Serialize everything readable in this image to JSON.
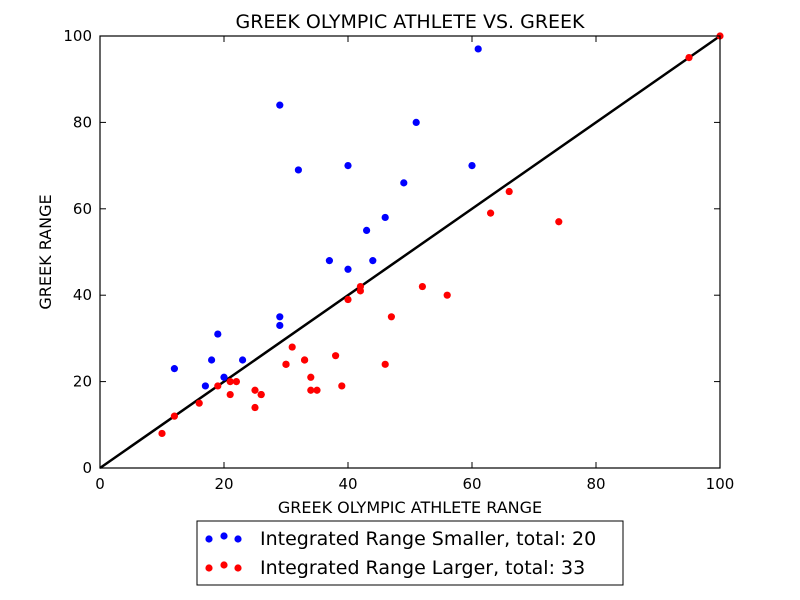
{
  "chart_data": {
    "type": "scatter",
    "title": "GREEK OLYMPIC ATHLETE VS. GREEK",
    "xlabel": "GREEK OLYMPIC ATHLETE RANGE",
    "ylabel": "GREEK RANGE",
    "xlim": [
      0,
      100
    ],
    "ylim": [
      0,
      100
    ],
    "x_ticks": [
      0,
      20,
      40,
      60,
      80,
      100
    ],
    "y_ticks": [
      0,
      20,
      40,
      60,
      80,
      100
    ],
    "grid": false,
    "legend_position": "bottom-center",
    "reference_line": {
      "from": [
        0,
        0
      ],
      "to": [
        100,
        100
      ],
      "color": "#000000"
    },
    "series": [
      {
        "name": "Integrated Range Smaller, total: 20",
        "color": "#0000ff",
        "points": [
          [
            61,
            97
          ],
          [
            29,
            84
          ],
          [
            51,
            80
          ],
          [
            40,
            70
          ],
          [
            60,
            70
          ],
          [
            32,
            69
          ],
          [
            49,
            66
          ],
          [
            46,
            58
          ],
          [
            43,
            55
          ],
          [
            37,
            48
          ],
          [
            44,
            48
          ],
          [
            40,
            46
          ],
          [
            29,
            35
          ],
          [
            29,
            33
          ],
          [
            19,
            31
          ],
          [
            18,
            25
          ],
          [
            23,
            25
          ],
          [
            12,
            23
          ],
          [
            20,
            21
          ],
          [
            17,
            19
          ]
        ]
      },
      {
        "name": "Integrated Range Larger, total: 33",
        "color": "#ff0000",
        "points": [
          [
            100,
            100
          ],
          [
            95,
            95
          ],
          [
            66,
            64
          ],
          [
            63,
            59
          ],
          [
            74,
            57
          ],
          [
            52,
            42
          ],
          [
            42,
            42
          ],
          [
            42,
            41
          ],
          [
            56,
            40
          ],
          [
            40,
            39
          ],
          [
            47,
            35
          ],
          [
            31,
            28
          ],
          [
            38,
            26
          ],
          [
            33,
            25
          ],
          [
            30,
            24
          ],
          [
            46,
            24
          ],
          [
            34,
            21
          ],
          [
            21,
            20
          ],
          [
            19,
            19
          ],
          [
            39,
            19
          ],
          [
            25,
            18
          ],
          [
            34,
            18
          ],
          [
            21,
            17
          ],
          [
            26,
            17
          ],
          [
            16,
            15
          ],
          [
            25,
            14
          ],
          [
            12,
            12
          ],
          [
            10,
            8
          ],
          [
            22,
            20
          ],
          [
            35,
            18
          ],
          [
            26,
            17
          ],
          [
            30,
            24
          ],
          [
            33,
            25
          ]
        ]
      }
    ]
  }
}
